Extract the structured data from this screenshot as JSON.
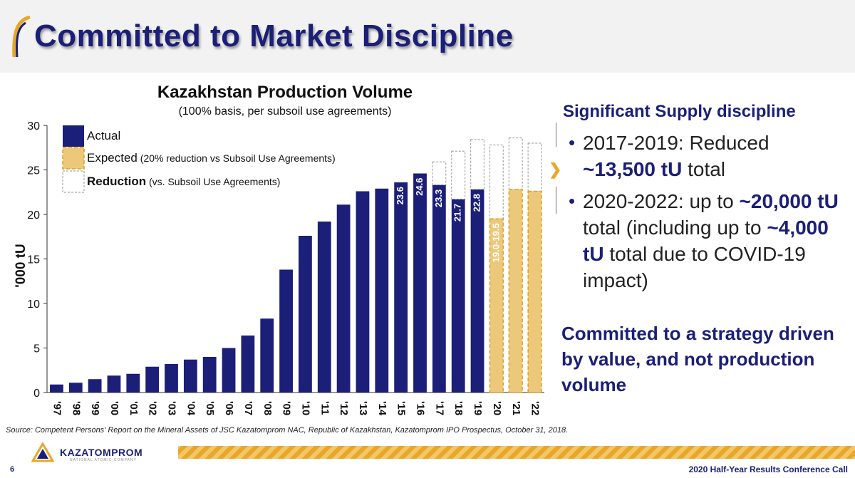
{
  "header": {
    "title": "Committed to Market Discipline"
  },
  "chart_data": {
    "type": "bar",
    "title": "Kazakhstan Production Volume",
    "subtitle": "(100% basis, per subsoil use agreements)",
    "ylabel": "'000 tU",
    "ylim": [
      0,
      30
    ],
    "yticks": [
      0,
      5,
      10,
      15,
      20,
      25,
      30
    ],
    "categories": [
      "'97",
      "'98",
      "'99",
      "'00",
      "'01",
      "'02",
      "'03",
      "'04",
      "'05",
      "'06",
      "'07",
      "'08",
      "'09",
      "'10",
      "'11",
      "'12",
      "'13",
      "'14",
      "'15",
      "'16",
      "'17",
      "'18",
      "'19",
      "'20",
      "'21",
      "'22"
    ],
    "series": [
      {
        "name": "Actual",
        "values": [
          0.9,
          1.1,
          1.5,
          1.9,
          2.1,
          2.9,
          3.2,
          3.7,
          4.0,
          5.0,
          6.4,
          8.3,
          13.8,
          17.6,
          19.2,
          21.1,
          22.6,
          22.9,
          23.6,
          24.6,
          23.3,
          21.7,
          22.8,
          null,
          null,
          null
        ]
      },
      {
        "name": "Expected",
        "values": [
          null,
          null,
          null,
          null,
          null,
          null,
          null,
          null,
          null,
          null,
          null,
          null,
          null,
          null,
          null,
          null,
          null,
          null,
          null,
          null,
          null,
          null,
          null,
          19.5,
          22.8,
          22.6
        ]
      },
      {
        "name": "Reduction",
        "values": [
          null,
          null,
          null,
          null,
          null,
          null,
          null,
          null,
          null,
          null,
          null,
          null,
          null,
          null,
          null,
          null,
          null,
          null,
          null,
          null,
          2.6,
          5.4,
          5.6,
          8.3,
          5.8,
          5.4
        ]
      }
    ],
    "data_labels": [
      {
        "category": "'15",
        "text": "23.6"
      },
      {
        "category": "'16",
        "text": "24.6"
      },
      {
        "category": "'17",
        "text": "23.3"
      },
      {
        "category": "'18",
        "text": "21.7"
      },
      {
        "category": "'19",
        "text": "22.8"
      },
      {
        "category": "'20",
        "text": "19.0-19.5"
      }
    ],
    "legend": [
      {
        "key": "actual",
        "label": "Actual",
        "note": ""
      },
      {
        "key": "expected",
        "label": "Expected",
        "note": "(20% reduction vs Subsoil Use Agreements)"
      },
      {
        "key": "reduction",
        "label": "Reduction",
        "note": "(vs. Subsoil Use Agreements)"
      }
    ],
    "colors": {
      "actual": "#1b1f78",
      "expected": "#ecc97a",
      "expected_border": "#e0a020",
      "reduction_border": "#a8a8a8"
    }
  },
  "right_panel": {
    "heading": "Significant Supply discipline",
    "bullet1": {
      "text1": "2017-2019: Reduced ",
      "bold1": "~13,500 tU",
      "text2": " total"
    },
    "bullet2": {
      "text1": "2020-2022: up to ",
      "bold1": "~20,000 tU",
      "text2": " total (including up to ",
      "bold2": "~4,000 tU",
      "text3": " total due to COVID-19 impact)"
    },
    "bottom": "Committed to a strategy driven by value, and not production volume"
  },
  "footer": {
    "source": "Source: Competent Persons' Report on the Mineral Assets of JSC Kazatomprom NAC, Republic of Kazakhstan, Kazatomprom IPO Prospectus, October 31, 2018.",
    "logo_text": "KAZATOMPROM",
    "logo_sub": "NATIONAL ATOMIC COMPANY",
    "page_number": "6",
    "right_text": "2020 Half-Year Results Conference Call"
  },
  "colors": {
    "brand_blue": "#1b1f78",
    "accent_gold": "#e8a72a"
  }
}
